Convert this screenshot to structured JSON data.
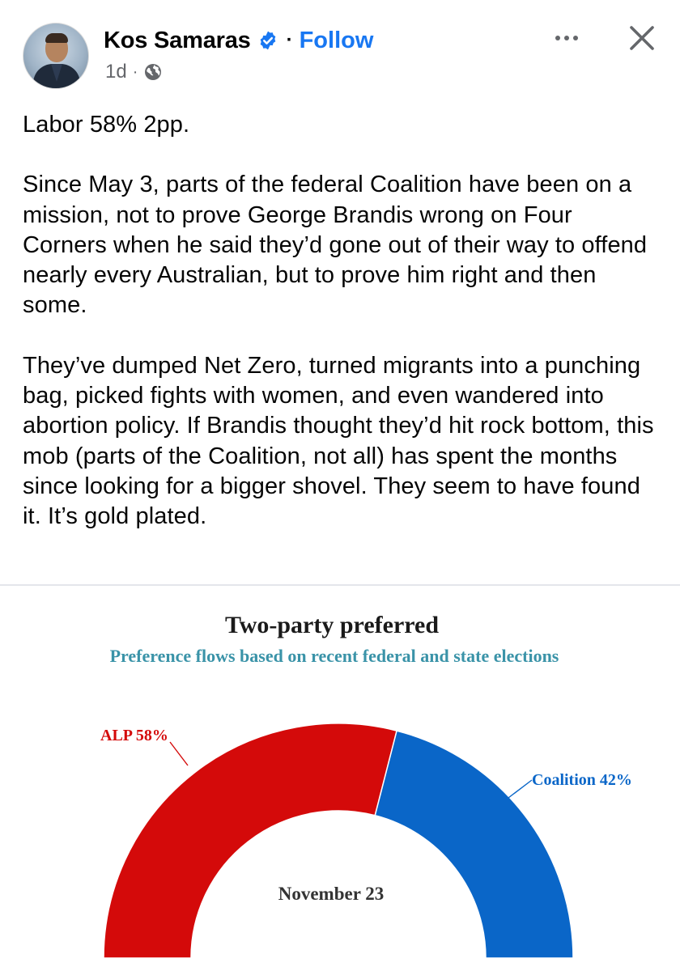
{
  "post": {
    "author_name": "Kos Samaras",
    "follow_label": "Follow",
    "separator": "·",
    "time_ago": "1d",
    "meta_separator": "·",
    "icons": {
      "verified": "verified-badge-icon",
      "audience": "globe-icon",
      "more": "more-options-icon",
      "close": "close-icon"
    },
    "paragraphs": [
      "Labor 58% 2pp.",
      "Since May 3, parts of the federal Coalition have been on a mission, not to prove George Brandis wrong on Four Corners when he said they’d gone out of their way to offend nearly every Australian, but to prove him right and then some.",
      "They’ve dumped Net Zero, turned migrants into a punching bag, picked fights with women, and even wandered into abortion policy. If Brandis thought they’d hit rock bottom, this mob (parts of the Coalition, not all) has spent the months since looking for a bigger shovel. They seem to have found it. It’s gold plated."
    ]
  },
  "colors": {
    "follow": "#1877f2",
    "alp": "#d40a0a",
    "coalition": "#0a66c8",
    "subtitle": "#3a93a8"
  },
  "chart_data": {
    "type": "pie",
    "style": "half-donut",
    "title": "Two-party preferred",
    "subtitle": "Preference flows based on recent federal and state elections",
    "center_label": "November 23",
    "slices": [
      {
        "label": "ALP 58%",
        "value": 58,
        "color": "#d40a0a"
      },
      {
        "label": "Coalition 42%",
        "value": 42,
        "color": "#0a66c8"
      }
    ]
  }
}
